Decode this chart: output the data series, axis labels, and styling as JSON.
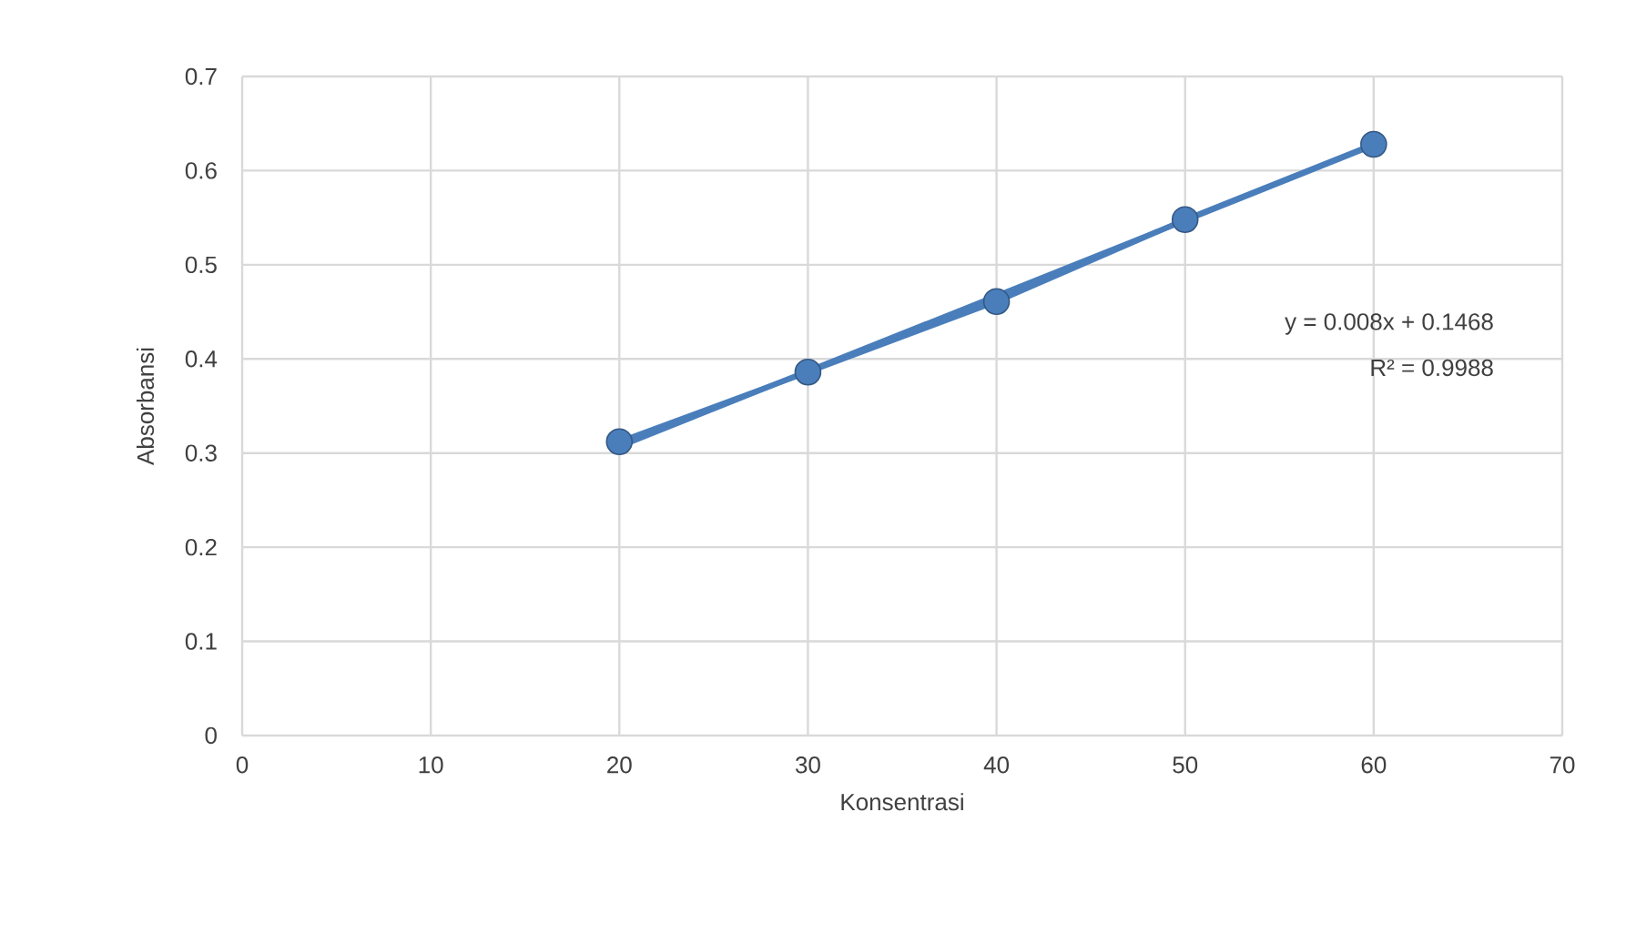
{
  "chart_data": {
    "type": "line",
    "xlabel": "Konsentrasi",
    "ylabel": "Absorbansi",
    "x": [
      20,
      30,
      40,
      50,
      60
    ],
    "series": [
      {
        "color": "#4a7ebb",
        "marker": "circle",
        "values": [
          0.312,
          0.386,
          0.461,
          0.548,
          0.628
        ]
      },
      {
        "color": "#4a7ebb",
        "marker": "none",
        "x": [
          20,
          60
        ],
        "values": [
          0.307,
          0.627
        ]
      }
    ],
    "xlim": [
      0,
      70
    ],
    "ylim": [
      0,
      0.7
    ],
    "xticks": [
      0,
      10,
      20,
      30,
      40,
      50,
      60,
      70
    ],
    "yticks": [
      0,
      0.1,
      0.2,
      0.3,
      0.4,
      0.5,
      0.6,
      0.7
    ],
    "grid": true,
    "annotations": [
      "y = 0.008x + 0.1468",
      "R² = 0.9988"
    ]
  }
}
